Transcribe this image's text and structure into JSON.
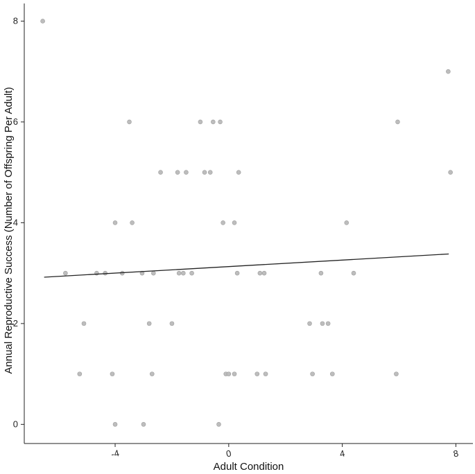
{
  "chart_data": {
    "type": "scatter",
    "title": "",
    "xlabel": "Adult Condition",
    "ylabel": "Annual Reproductive Success (Number of Offspring Per Adult)",
    "xlim": [
      -7.2,
      8.6
    ],
    "ylim": [
      -0.38,
      8.35
    ],
    "xticks": [
      -4,
      0,
      4,
      8
    ],
    "xtick_labels": [
      "-4",
      "0",
      "4",
      "8"
    ],
    "yticks": [
      0,
      2,
      4,
      6,
      8
    ],
    "ytick_labels": [
      "0",
      "2",
      "4",
      "6",
      "8"
    ],
    "grid": false,
    "legend": "none",
    "point_color": "#bdbdbd",
    "line_color": "#222222",
    "trend_line": {
      "x": [
        -6.5,
        7.75
      ],
      "y": [
        2.92,
        3.38
      ]
    },
    "points": [
      {
        "x": -6.55,
        "y": 8
      },
      {
        "x": 7.73,
        "y": 7
      },
      {
        "x": 7.81,
        "y": 5
      },
      {
        "x": -3.5,
        "y": 6
      },
      {
        "x": -1.0,
        "y": 6
      },
      {
        "x": -0.55,
        "y": 6
      },
      {
        "x": -0.3,
        "y": 6
      },
      {
        "x": 5.95,
        "y": 6
      },
      {
        "x": -2.4,
        "y": 5
      },
      {
        "x": -1.8,
        "y": 5
      },
      {
        "x": -1.5,
        "y": 5
      },
      {
        "x": -0.85,
        "y": 5
      },
      {
        "x": -0.65,
        "y": 5
      },
      {
        "x": 0.35,
        "y": 5
      },
      {
        "x": -4.0,
        "y": 4
      },
      {
        "x": -3.4,
        "y": 4
      },
      {
        "x": -0.2,
        "y": 4
      },
      {
        "x": 0.2,
        "y": 4
      },
      {
        "x": 4.15,
        "y": 4
      },
      {
        "x": -5.75,
        "y": 3
      },
      {
        "x": -4.65,
        "y": 3
      },
      {
        "x": -4.35,
        "y": 3
      },
      {
        "x": -3.75,
        "y": 3
      },
      {
        "x": -3.05,
        "y": 3
      },
      {
        "x": -2.65,
        "y": 3
      },
      {
        "x": -1.75,
        "y": 3
      },
      {
        "x": -1.6,
        "y": 3
      },
      {
        "x": -1.3,
        "y": 3
      },
      {
        "x": 0.3,
        "y": 3
      },
      {
        "x": 1.1,
        "y": 3
      },
      {
        "x": 1.25,
        "y": 3
      },
      {
        "x": 3.25,
        "y": 3
      },
      {
        "x": 4.4,
        "y": 3
      },
      {
        "x": -5.1,
        "y": 2
      },
      {
        "x": -2.8,
        "y": 2
      },
      {
        "x": -2.0,
        "y": 2
      },
      {
        "x": 2.85,
        "y": 2
      },
      {
        "x": 3.3,
        "y": 2
      },
      {
        "x": 3.5,
        "y": 2
      },
      {
        "x": -5.25,
        "y": 1
      },
      {
        "x": -4.1,
        "y": 1
      },
      {
        "x": -2.7,
        "y": 1
      },
      {
        "x": -0.1,
        "y": 1
      },
      {
        "x": 0.0,
        "y": 1
      },
      {
        "x": 0.2,
        "y": 1
      },
      {
        "x": 1.0,
        "y": 1
      },
      {
        "x": 1.3,
        "y": 1
      },
      {
        "x": 2.95,
        "y": 1
      },
      {
        "x": 3.65,
        "y": 1
      },
      {
        "x": 5.9,
        "y": 1
      },
      {
        "x": -4.0,
        "y": 0
      },
      {
        "x": -3.0,
        "y": 0
      },
      {
        "x": -0.35,
        "y": 0
      }
    ]
  }
}
